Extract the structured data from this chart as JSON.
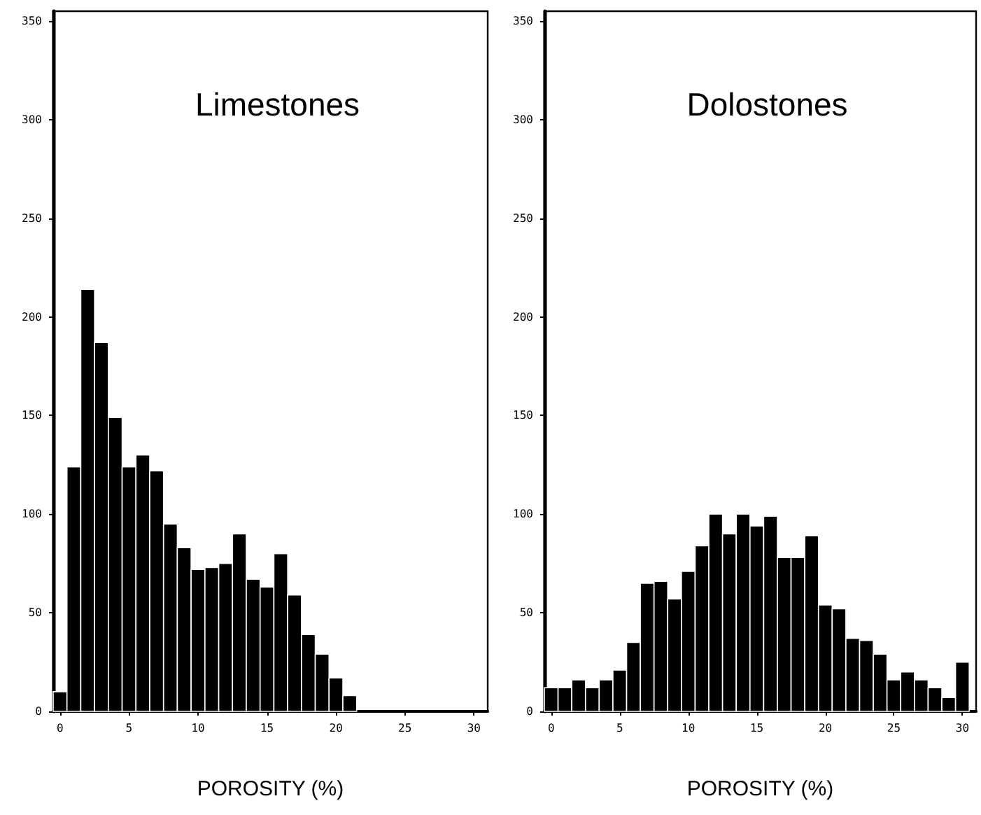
{
  "chart_data": [
    {
      "type": "histogram",
      "title": "Limestones",
      "xlabel": "POROSITY (%)",
      "color": "#000000",
      "bins": [
        -0.5,
        0.5,
        1.5,
        2.5,
        3.5,
        4.5,
        5.5,
        6.5,
        7.5,
        8.5,
        9.5,
        10.5,
        11.5,
        12.5,
        13.5,
        14.5,
        15.5,
        16.5,
        17.5,
        18.5,
        19.5,
        20.5,
        21.5
      ],
      "values": [
        10,
        124,
        214,
        187,
        149,
        124,
        130,
        122,
        95,
        83,
        72,
        73,
        75,
        90,
        67,
        63,
        80,
        59,
        39,
        29,
        17,
        8
      ],
      "xlim": [
        -0.5,
        31
      ],
      "xticks": [
        0,
        5,
        10,
        15,
        20,
        25,
        30
      ],
      "ylim": [
        0,
        355
      ],
      "yticks": [
        0,
        50,
        100,
        150,
        200,
        250,
        300,
        350
      ]
    },
    {
      "type": "histogram",
      "title": "Dolostones",
      "xlabel": "POROSITY (%)",
      "color": "#000000",
      "bins": [
        -0.5,
        0.5,
        1.5,
        2.5,
        3.5,
        4.5,
        5.5,
        6.5,
        7.5,
        8.5,
        9.5,
        10.5,
        11.5,
        12.5,
        13.5,
        14.5,
        15.5,
        16.5,
        17.5,
        18.5,
        19.5,
        20.5,
        21.5,
        22.5,
        23.5,
        24.5,
        25.5,
        26.5,
        27.5,
        28.5,
        29.5,
        30.5
      ],
      "values": [
        12,
        12,
        16,
        12,
        16,
        21,
        35,
        65,
        66,
        57,
        71,
        84,
        100,
        90,
        100,
        94,
        99,
        78,
        78,
        89,
        54,
        52,
        37,
        36,
        29,
        16,
        20,
        16,
        12,
        7,
        25
      ],
      "xlim": [
        -0.5,
        31
      ],
      "xticks": [
        0,
        5,
        10,
        15,
        20,
        25,
        30
      ],
      "ylim": [
        0,
        355
      ],
      "yticks": [
        0,
        50,
        100,
        150,
        200,
        250,
        300,
        350
      ]
    }
  ]
}
